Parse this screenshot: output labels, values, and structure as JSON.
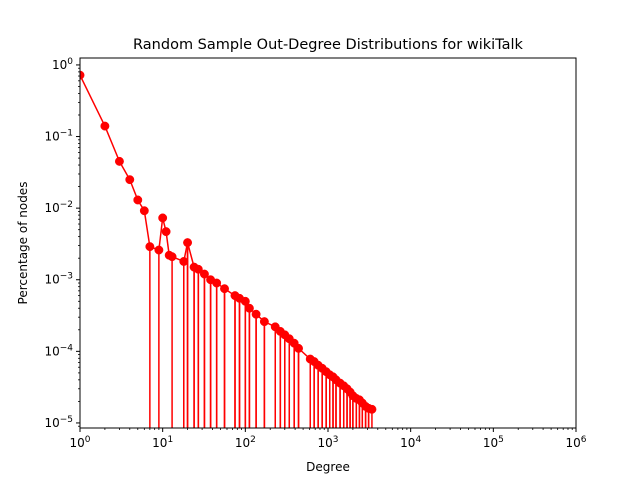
{
  "chart_data": {
    "type": "line",
    "title": "Random Sample Out-Degree Distributions for wikiTalk",
    "xlabel": "Degree",
    "ylabel": "Percentage of nodes",
    "xscale": "log",
    "yscale": "log",
    "xlim": [
      1,
      1000000
    ],
    "ylim": [
      8.5e-06,
      1.25
    ],
    "grid": false,
    "legend": "none",
    "x_ticks": [
      {
        "value": 1,
        "base": "10",
        "exp": "0"
      },
      {
        "value": 10,
        "base": "10",
        "exp": "1"
      },
      {
        "value": 100,
        "base": "10",
        "exp": "2"
      },
      {
        "value": 1000,
        "base": "10",
        "exp": "3"
      },
      {
        "value": 10000,
        "base": "10",
        "exp": "4"
      },
      {
        "value": 100000,
        "base": "10",
        "exp": "5"
      },
      {
        "value": 1000000,
        "base": "10",
        "exp": "6"
      }
    ],
    "y_ticks": [
      {
        "value": 1e-05,
        "base": "10",
        "exp": "−5"
      },
      {
        "value": 0.0001,
        "base": "10",
        "exp": "−4"
      },
      {
        "value": 0.001,
        "base": "10",
        "exp": "−3"
      },
      {
        "value": 0.01,
        "base": "10",
        "exp": "−2"
      },
      {
        "value": 0.1,
        "base": "10",
        "exp": "−1"
      },
      {
        "value": 1,
        "base": "10",
        "exp": "0"
      }
    ],
    "series": [
      {
        "color": "#ff0000",
        "points": [
          [
            1,
            0.72
          ],
          [
            2,
            0.14
          ],
          [
            3,
            0.045
          ],
          [
            4,
            0.025
          ],
          [
            5,
            0.013
          ],
          [
            6,
            0.0092
          ],
          [
            7,
            0.0029
          ],
          [
            9,
            0.0026
          ],
          [
            10,
            0.0073
          ],
          [
            11,
            0.0047
          ],
          [
            12,
            0.0022
          ],
          [
            13,
            0.0021
          ],
          [
            18,
            0.0018
          ],
          [
            20,
            0.0033
          ],
          [
            24,
            0.0015
          ],
          [
            27,
            0.0014
          ],
          [
            32,
            0.0012
          ],
          [
            38,
            0.001
          ],
          [
            45,
            0.0009
          ],
          [
            56,
            0.00075
          ],
          [
            75,
            0.0006
          ],
          [
            85,
            0.00055
          ],
          [
            100,
            0.0005
          ],
          [
            112,
            0.0004
          ],
          [
            135,
            0.00033
          ],
          [
            170,
            0.00026
          ],
          [
            230,
            0.00022
          ],
          [
            265,
            0.00019
          ],
          [
            300,
            0.00017
          ],
          [
            340,
            0.00015
          ],
          [
            390,
            0.00013
          ],
          [
            440,
            0.00011
          ],
          [
            610,
            7.8e-05
          ],
          [
            680,
            7.2e-05
          ],
          [
            760,
            6.4e-05
          ],
          [
            850,
            5.8e-05
          ],
          [
            950,
            5.2e-05
          ],
          [
            1050,
            4.7e-05
          ],
          [
            1150,
            4.4e-05
          ],
          [
            1250,
            4e-05
          ],
          [
            1400,
            3.6e-05
          ],
          [
            1550,
            3.3e-05
          ],
          [
            1700,
            3e-05
          ],
          [
            1850,
            2.7e-05
          ],
          [
            2000,
            2.4e-05
          ],
          [
            2200,
            2.2e-05
          ],
          [
            2400,
            2.1e-05
          ],
          [
            2600,
            1.9e-05
          ],
          [
            2850,
            1.7e-05
          ],
          [
            3100,
            1.6e-05
          ],
          [
            3400,
            1.55e-05
          ]
        ]
      }
    ]
  }
}
